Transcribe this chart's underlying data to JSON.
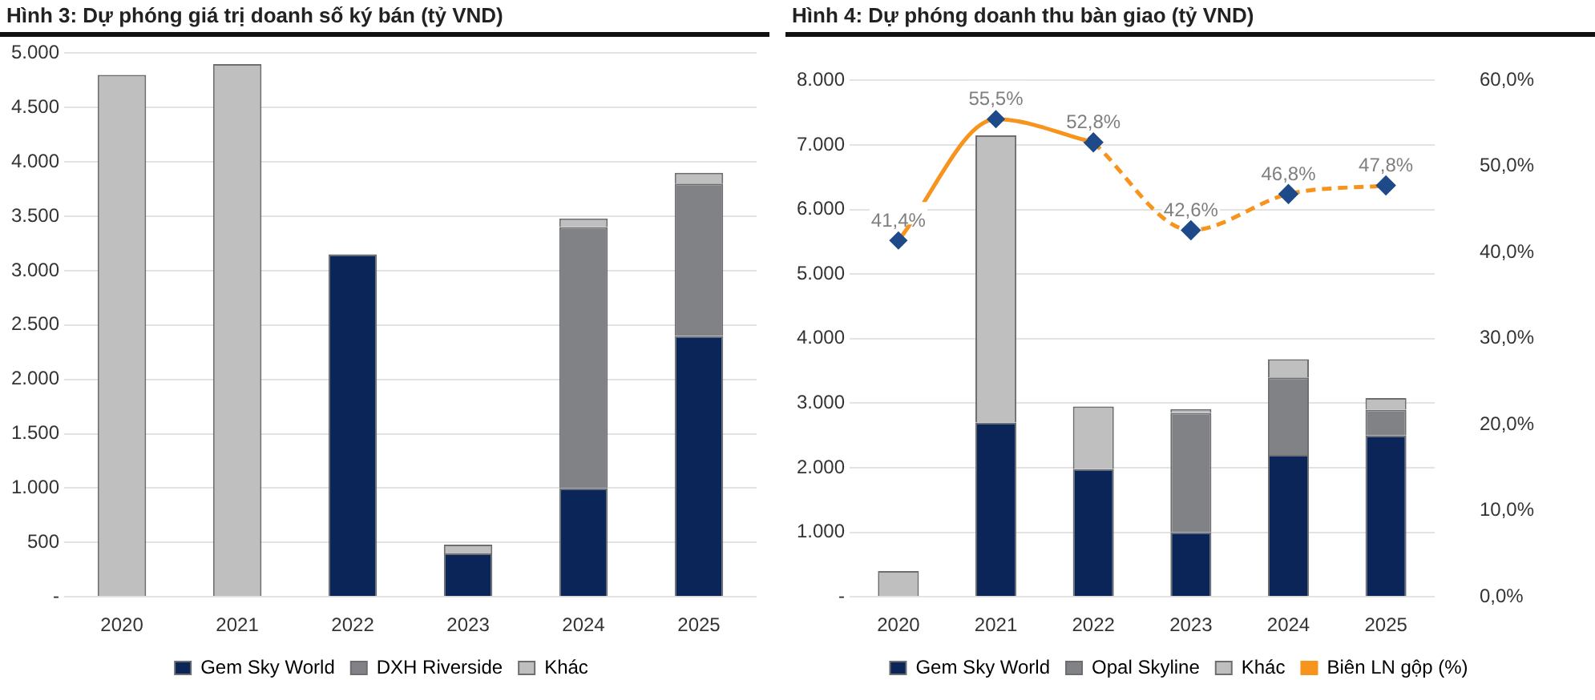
{
  "chart_data": [
    {
      "type": "bar",
      "title": "Hình 3: Dự phóng giá trị doanh số ký bán (tỷ VND)",
      "stacked": true,
      "categories": [
        "2020",
        "2021",
        "2022",
        "2023",
        "2024",
        "2025"
      ],
      "series": [
        {
          "name": "Gem Sky World",
          "color": "#0b2559",
          "values": [
            0,
            0,
            3150,
            400,
            1000,
            2400
          ]
        },
        {
          "name": "DXH Riverside",
          "color": "#808285",
          "values": [
            0,
            0,
            0,
            0,
            2400,
            1400
          ]
        },
        {
          "name": "Khác",
          "color": "#bfbfbf",
          "values": [
            4800,
            4900,
            0,
            80,
            80,
            100
          ]
        }
      ],
      "ylim": [
        0,
        5000
      ],
      "yticks": [
        {
          "value": 0,
          "label": "-"
        },
        {
          "value": 500,
          "label": "500"
        },
        {
          "value": 1000,
          "label": "1.000"
        },
        {
          "value": 1500,
          "label": "1.500"
        },
        {
          "value": 2000,
          "label": "2.000"
        },
        {
          "value": 2500,
          "label": "2.500"
        },
        {
          "value": 3000,
          "label": "3.000"
        },
        {
          "value": 3500,
          "label": "3.500"
        },
        {
          "value": 4000,
          "label": "4.000"
        },
        {
          "value": 4500,
          "label": "4.500"
        },
        {
          "value": 5000,
          "label": "5.000"
        }
      ],
      "grid": "y",
      "legend": "bottom"
    },
    {
      "type": "bar",
      "title": "Hình 4: Dự phóng doanh thu bàn giao (tỷ VND)",
      "stacked": true,
      "categories": [
        "2020",
        "2021",
        "2022",
        "2023",
        "2024",
        "2025"
      ],
      "series": [
        {
          "name": "Gem Sky World",
          "color": "#0b2559",
          "values": [
            0,
            2700,
            1980,
            1000,
            2200,
            2500
          ]
        },
        {
          "name": "Opal Skyline",
          "color": "#808285",
          "values": [
            0,
            0,
            0,
            1850,
            1200,
            400
          ]
        },
        {
          "name": "Khác",
          "color": "#bfbfbf",
          "values": [
            400,
            4450,
            970,
            60,
            280,
            180
          ]
        },
        {
          "name": "Biên LN gộp (%)",
          "type": "line",
          "axis": "y2",
          "color": "#f7941d",
          "line_style": "solid",
          "marker": "diamond",
          "values": [
            41.4,
            55.5,
            52.8,
            null,
            null,
            null
          ],
          "value_labels": [
            "41,4%",
            "55,5%",
            "52,8%",
            null,
            null,
            null
          ]
        },
        {
          "type": "line",
          "axis": "y2",
          "color": "#f7941d",
          "line_style": "dashed",
          "marker": "diamond",
          "values": [
            null,
            null,
            52.8,
            42.6,
            46.8,
            47.8
          ],
          "value_labels": [
            null,
            null,
            null,
            "42,6%",
            "46,8%",
            "47,8%"
          ]
        }
      ],
      "ylim": [
        0,
        8000
      ],
      "yticks": [
        {
          "value": 0,
          "label": "-"
        },
        {
          "value": 1000,
          "label": "1.000"
        },
        {
          "value": 2000,
          "label": "2.000"
        },
        {
          "value": 3000,
          "label": "3.000"
        },
        {
          "value": 4000,
          "label": "4.000"
        },
        {
          "value": 5000,
          "label": "5.000"
        },
        {
          "value": 6000,
          "label": "6.000"
        },
        {
          "value": 7000,
          "label": "7.000"
        },
        {
          "value": 8000,
          "label": "8.000"
        }
      ],
      "y2lim": [
        0,
        60
      ],
      "y2ticks": [
        {
          "value": 0,
          "label": "0,0%"
        },
        {
          "value": 10,
          "label": "10,0%"
        },
        {
          "value": 20,
          "label": "20,0%"
        },
        {
          "value": 30,
          "label": "30,0%"
        },
        {
          "value": 40,
          "label": "40,0%"
        },
        {
          "value": 50,
          "label": "50,0%"
        },
        {
          "value": 60,
          "label": "60,0%"
        }
      ],
      "grid": "y",
      "legend": "bottom"
    }
  ]
}
